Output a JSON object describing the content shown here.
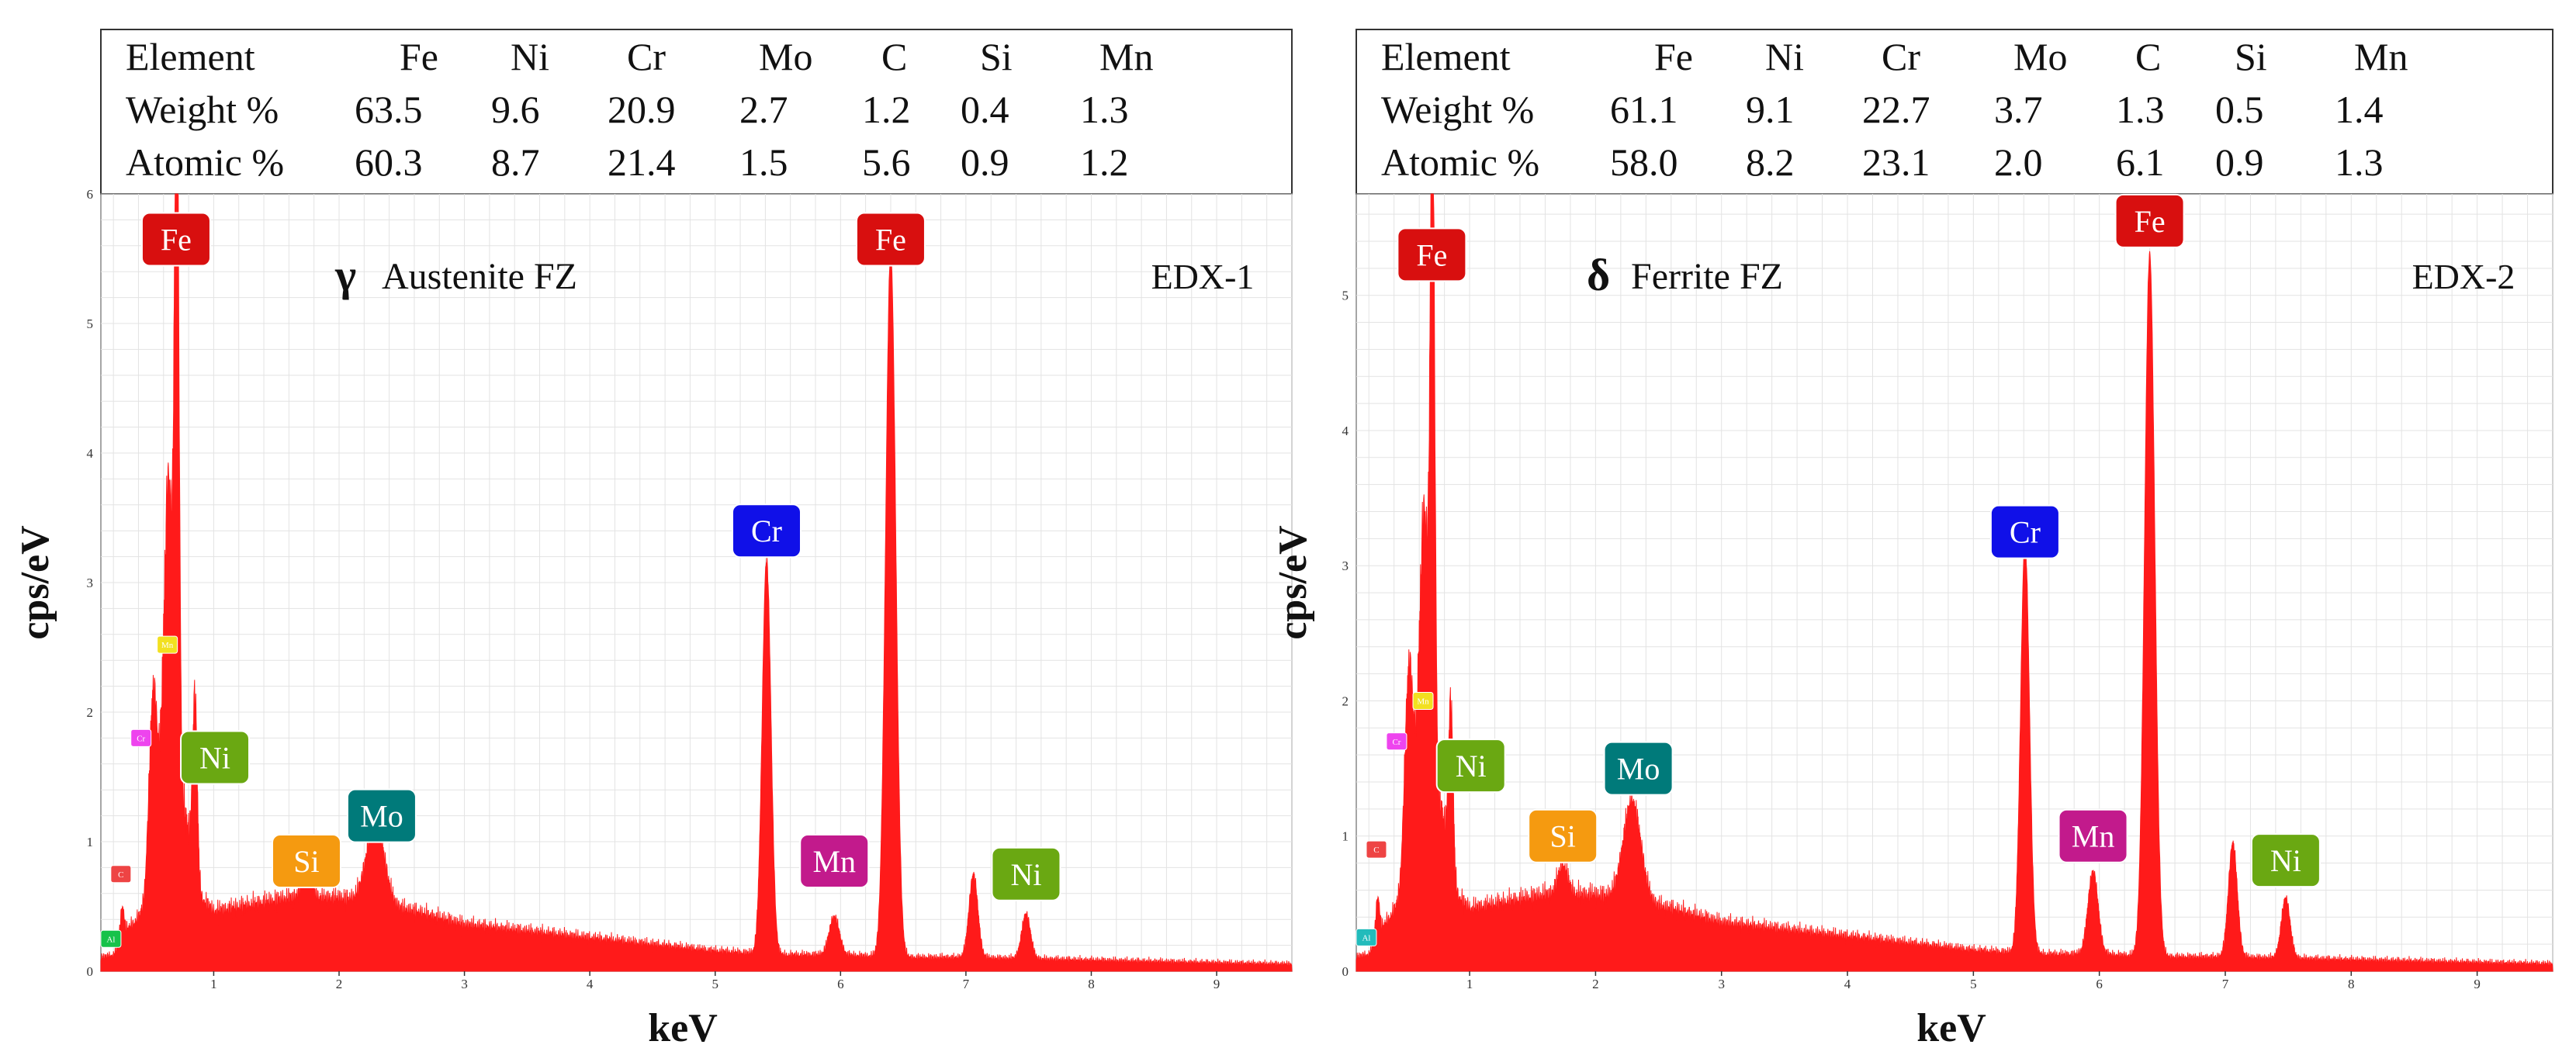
{
  "colors": {
    "spectrum": "#ff1a1a",
    "Fe": "#d80f0f",
    "Cr": "#1010e8",
    "Mo": "#007a7a",
    "Ni": "#6aa812",
    "Si": "#f59a10",
    "Mn": "#c21a8c",
    "Mn_small": "#f2e020",
    "Cr_small": "#ee44ee",
    "C_small": "#ee4444",
    "Al_small": "#16c24a",
    "Al_small_2": "#22bbbb"
  },
  "chart_data": [
    {
      "type": "area",
      "title": "Austenite FZ",
      "phase_symbol": "γ",
      "phase_label": "Austenite FZ",
      "tag": "EDX-1",
      "xlabel": "keV",
      "ylabel": "cps/eV",
      "xlim": [
        0.1,
        9.6
      ],
      "ylim": [
        0,
        6
      ],
      "xticks": [
        "1",
        "2",
        "3",
        "4",
        "5",
        "6",
        "7",
        "8",
        "9"
      ],
      "yticks": [
        "0",
        "1",
        "2",
        "3",
        "4",
        "5",
        "6"
      ],
      "grid": true,
      "table": {
        "header": [
          "Element",
          "Fe",
          "Ni",
          "Cr",
          "Mo",
          "C",
          "Si",
          "Mn"
        ],
        "rows": [
          {
            "label": "Weight %",
            "values": [
              "63.5",
              "9.6",
              "20.9",
              "2.7",
              "1.2",
              "0.4",
              "1.3"
            ]
          },
          {
            "label": "Atomic %",
            "values": [
              "60.3",
              "8.7",
              "21.4",
              "1.5",
              "5.6",
              "0.9",
              "1.2"
            ]
          }
        ]
      },
      "baseline_points": [
        [
          0.1,
          0.1
        ],
        [
          0.2,
          0.12
        ],
        [
          0.3,
          0.3
        ],
        [
          0.45,
          0.45
        ],
        [
          0.55,
          0.8
        ],
        [
          0.6,
          1.6
        ],
        [
          0.75,
          1.3
        ],
        [
          0.9,
          0.55
        ],
        [
          1.0,
          0.45
        ],
        [
          1.3,
          0.5
        ],
        [
          1.6,
          0.55
        ],
        [
          2.0,
          0.55
        ],
        [
          2.6,
          0.45
        ],
        [
          3.0,
          0.35
        ],
        [
          3.5,
          0.3
        ],
        [
          4.0,
          0.25
        ],
        [
          4.5,
          0.2
        ],
        [
          5.0,
          0.15
        ],
        [
          5.5,
          0.12
        ],
        [
          6.0,
          0.12
        ],
        [
          6.5,
          0.1
        ],
        [
          7.0,
          0.1
        ],
        [
          8.0,
          0.08
        ],
        [
          9.0,
          0.06
        ],
        [
          9.6,
          0.05
        ]
      ],
      "peaks": [
        {
          "x": 0.27,
          "y": 0.25,
          "w": 0.015
        },
        {
          "x": 0.52,
          "y": 1.5,
          "w": 0.035
        },
        {
          "x": 0.64,
          "y": 2.3,
          "w": 0.03
        },
        {
          "x": 0.705,
          "y": 5.5,
          "w": 0.018
        },
        {
          "x": 0.85,
          "y": 1.35,
          "w": 0.018
        },
        {
          "x": 1.74,
          "y": 0.2,
          "w": 0.04
        },
        {
          "x": 2.29,
          "y": 0.65,
          "w": 0.07
        },
        {
          "x": 5.41,
          "y": 3.05,
          "w": 0.035
        },
        {
          "x": 5.95,
          "y": 0.3,
          "w": 0.04
        },
        {
          "x": 6.4,
          "y": 5.45,
          "w": 0.04
        },
        {
          "x": 7.06,
          "y": 0.65,
          "w": 0.035
        },
        {
          "x": 7.48,
          "y": 0.35,
          "w": 0.035
        }
      ],
      "peak_labels": [
        {
          "text": "Fe",
          "x": 0.7,
          "y": 5.65,
          "color": "Fe",
          "size": "big"
        },
        {
          "text": "Fe",
          "x": 6.4,
          "y": 5.65,
          "color": "Fe",
          "size": "big"
        },
        {
          "text": "Cr",
          "x": 5.41,
          "y": 3.4,
          "color": "Cr",
          "size": "big"
        },
        {
          "text": "Ni",
          "x": 1.01,
          "y": 1.65,
          "color": "Ni",
          "size": "big"
        },
        {
          "text": "Si",
          "x": 1.74,
          "y": 0.85,
          "color": "Si",
          "size": "big"
        },
        {
          "text": "Mo",
          "x": 2.34,
          "y": 1.2,
          "color": "Mo",
          "size": "big"
        },
        {
          "text": "Mn",
          "x": 5.95,
          "y": 0.85,
          "color": "Mn",
          "size": "big"
        },
        {
          "text": "Ni",
          "x": 7.48,
          "y": 0.75,
          "color": "Ni",
          "size": "big"
        },
        {
          "text": "Mn",
          "x": 0.63,
          "y": 2.52,
          "color": "Mn_small",
          "size": "small"
        },
        {
          "text": "Cr",
          "x": 0.42,
          "y": 1.8,
          "color": "Cr_small",
          "size": "small"
        },
        {
          "text": "C",
          "x": 0.26,
          "y": 0.75,
          "color": "C_small",
          "size": "small"
        },
        {
          "text": "Al",
          "x": 0.18,
          "y": 0.25,
          "color": "Al_small",
          "size": "small"
        }
      ]
    },
    {
      "type": "area",
      "title": "Ferrite FZ",
      "phase_symbol": "δ",
      "phase_label": "Ferrite FZ",
      "tag": "EDX-2",
      "xlabel": "keV",
      "ylabel": "cps/eV",
      "xlim": [
        0.1,
        9.6
      ],
      "ylim": [
        0,
        5.75
      ],
      "xticks": [
        "1",
        "2",
        "3",
        "4",
        "5",
        "6",
        "7",
        "8",
        "9"
      ],
      "yticks": [
        "0",
        "1",
        "2",
        "3",
        "4",
        "5"
      ],
      "grid": true,
      "table": {
        "header": [
          "Element",
          "Fe",
          "Ni",
          "Cr",
          "Mo",
          "C",
          "Si",
          "Mn"
        ],
        "rows": [
          {
            "label": "Weight %",
            "values": [
              "61.1",
              "9.1",
              "22.7",
              "3.7",
              "1.3",
              "0.5",
              "1.4"
            ]
          },
          {
            "label": "Atomic %",
            "values": [
              "58.0",
              "8.2",
              "23.1",
              "2.0",
              "6.1",
              "0.9",
              "1.3"
            ]
          }
        ]
      },
      "baseline_points": [
        [
          0.1,
          0.1
        ],
        [
          0.2,
          0.12
        ],
        [
          0.3,
          0.3
        ],
        [
          0.45,
          0.5
        ],
        [
          0.55,
          0.9
        ],
        [
          0.6,
          1.6
        ],
        [
          0.75,
          1.3
        ],
        [
          0.9,
          0.55
        ],
        [
          1.0,
          0.45
        ],
        [
          1.3,
          0.5
        ],
        [
          1.6,
          0.55
        ],
        [
          2.0,
          0.55
        ],
        [
          2.6,
          0.45
        ],
        [
          3.0,
          0.35
        ],
        [
          3.5,
          0.3
        ],
        [
          4.0,
          0.25
        ],
        [
          4.5,
          0.2
        ],
        [
          5.0,
          0.15
        ],
        [
          5.5,
          0.12
        ],
        [
          6.0,
          0.12
        ],
        [
          6.5,
          0.1
        ],
        [
          7.0,
          0.1
        ],
        [
          8.0,
          0.08
        ],
        [
          9.0,
          0.06
        ],
        [
          9.6,
          0.05
        ]
      ],
      "peaks": [
        {
          "x": 0.27,
          "y": 0.3,
          "w": 0.015
        },
        {
          "x": 0.52,
          "y": 1.5,
          "w": 0.035
        },
        {
          "x": 0.64,
          "y": 1.9,
          "w": 0.03
        },
        {
          "x": 0.705,
          "y": 4.9,
          "w": 0.018
        },
        {
          "x": 0.85,
          "y": 1.2,
          "w": 0.018
        },
        {
          "x": 1.74,
          "y": 0.22,
          "w": 0.04
        },
        {
          "x": 2.29,
          "y": 0.75,
          "w": 0.07
        },
        {
          "x": 5.41,
          "y": 3.05,
          "w": 0.035
        },
        {
          "x": 5.95,
          "y": 0.62,
          "w": 0.04
        },
        {
          "x": 6.4,
          "y": 5.2,
          "w": 0.04
        },
        {
          "x": 7.06,
          "y": 0.85,
          "w": 0.035
        },
        {
          "x": 7.48,
          "y": 0.45,
          "w": 0.035
        }
      ],
      "peak_labels": [
        {
          "text": "Fe",
          "x": 0.7,
          "y": 5.3,
          "color": "Fe",
          "size": "big"
        },
        {
          "text": "Fe",
          "x": 6.4,
          "y": 5.55,
          "color": "Fe",
          "size": "big"
        },
        {
          "text": "Cr",
          "x": 5.41,
          "y": 3.25,
          "color": "Cr",
          "size": "big"
        },
        {
          "text": "Ni",
          "x": 1.01,
          "y": 1.52,
          "color": "Ni",
          "size": "big"
        },
        {
          "text": "Si",
          "x": 1.74,
          "y": 1.0,
          "color": "Si",
          "size": "big"
        },
        {
          "text": "Mo",
          "x": 2.34,
          "y": 1.5,
          "color": "Mo",
          "size": "big"
        },
        {
          "text": "Mn",
          "x": 5.95,
          "y": 1.0,
          "color": "Mn",
          "size": "big"
        },
        {
          "text": "Ni",
          "x": 7.48,
          "y": 0.82,
          "color": "Ni",
          "size": "big"
        },
        {
          "text": "Mn",
          "x": 0.63,
          "y": 2.0,
          "color": "Mn_small",
          "size": "small"
        },
        {
          "text": "Cr",
          "x": 0.42,
          "y": 1.7,
          "color": "Cr_small",
          "size": "small"
        },
        {
          "text": "C",
          "x": 0.26,
          "y": 0.9,
          "color": "C_small",
          "size": "small"
        },
        {
          "text": "Al",
          "x": 0.18,
          "y": 0.25,
          "color": "Al_small_2",
          "size": "small"
        }
      ]
    }
  ]
}
